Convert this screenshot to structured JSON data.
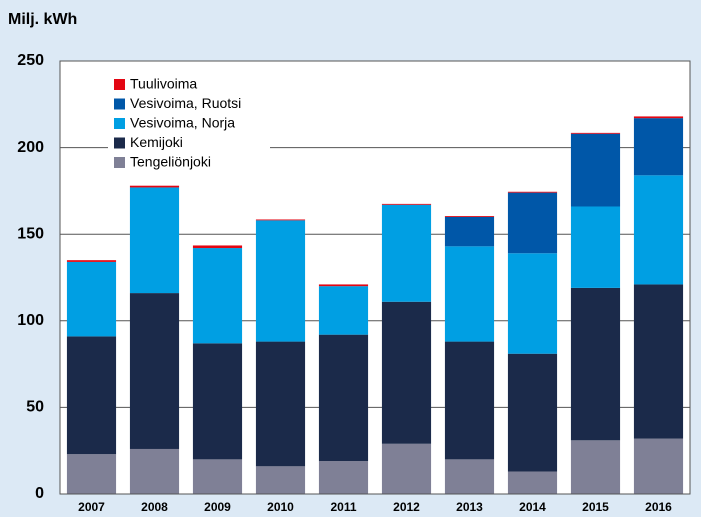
{
  "chart_data": {
    "type": "stacked_bar",
    "y_label": "Milj. kWh",
    "categories": [
      "2007",
      "2008",
      "2009",
      "2010",
      "2011",
      "2012",
      "2013",
      "2014",
      "2015",
      "2016"
    ],
    "series": [
      {
        "name": "Tengeliönjoki",
        "color": "#7f8096",
        "values": [
          23,
          26,
          20,
          16,
          19,
          29,
          20,
          13,
          31,
          32
        ]
      },
      {
        "name": "Kemijoki",
        "color": "#1b2a4a",
        "values": [
          68,
          90,
          67,
          72,
          73,
          82,
          68,
          68,
          88,
          89
        ]
      },
      {
        "name": "Vesivoima, Norja",
        "color": "#009fe3",
        "values": [
          43,
          61,
          55,
          70,
          28,
          56,
          55,
          58,
          47,
          63
        ]
      },
      {
        "name": "Vesivoima, Ruotsi",
        "color": "#0057a8",
        "values": [
          0,
          0,
          0,
          0,
          0,
          0,
          17,
          35,
          42,
          33
        ]
      },
      {
        "name": "Tuulivoima",
        "color": "#e30613",
        "values": [
          1,
          1,
          1.5,
          0.5,
          1,
          0.5,
          0.5,
          0.5,
          0.5,
          1
        ]
      }
    ],
    "ylim": [
      0,
      250
    ],
    "yticks": [
      0,
      50,
      100,
      150,
      200,
      250
    ],
    "grid": true
  }
}
